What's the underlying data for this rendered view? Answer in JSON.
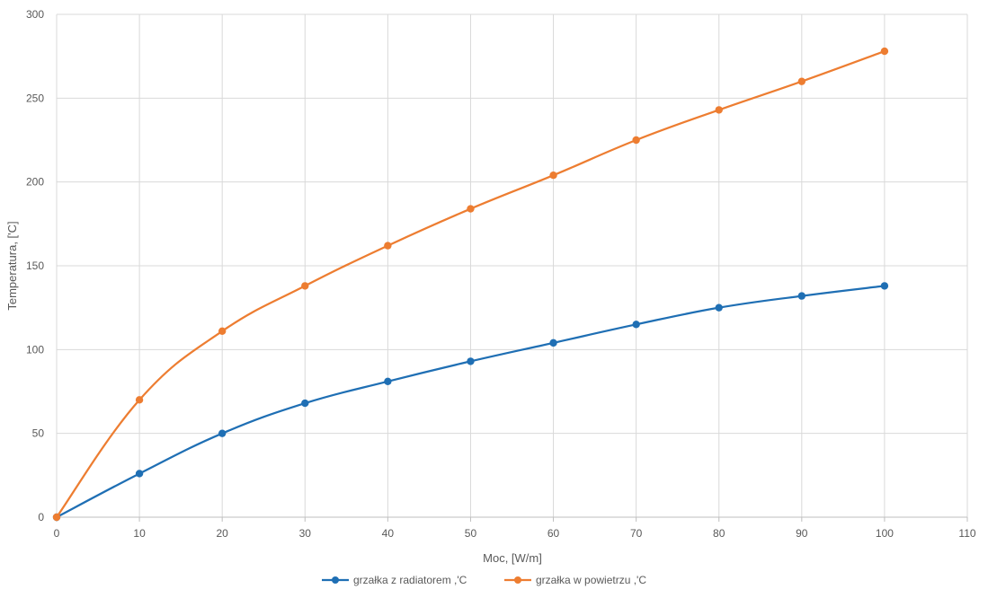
{
  "chart_data": {
    "type": "line",
    "title": "",
    "xlabel": "Moc, [W/m]",
    "ylabel": "Temperatura, ['C]",
    "xlim": [
      0,
      110
    ],
    "ylim": [
      0,
      300
    ],
    "x_ticks": [
      0,
      10,
      20,
      30,
      40,
      50,
      60,
      70,
      80,
      90,
      100,
      110
    ],
    "y_ticks": [
      0,
      50,
      100,
      150,
      200,
      250,
      300
    ],
    "grid": true,
    "legend_position": "bottom",
    "x": [
      0,
      10,
      20,
      30,
      40,
      50,
      60,
      70,
      80,
      90,
      100
    ],
    "series": [
      {
        "name": "grzałka z radiatorem ,'C",
        "color": "#1f6fb4",
        "values": [
          0,
          26,
          50,
          68,
          81,
          93,
          104,
          115,
          125,
          132,
          138
        ]
      },
      {
        "name": "grzałka w powietrzu ,'C",
        "color": "#ed7d31",
        "values": [
          0,
          70,
          111,
          138,
          162,
          184,
          204,
          225,
          243,
          260,
          278
        ]
      }
    ]
  }
}
